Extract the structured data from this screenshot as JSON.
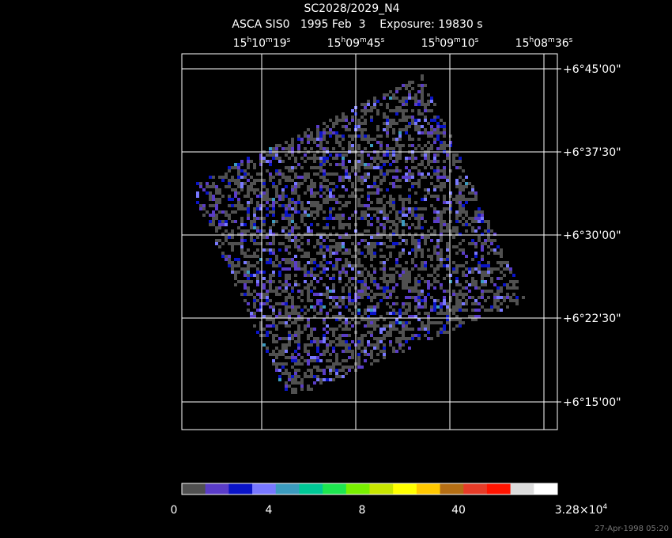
{
  "header": {
    "title": "SC2028/2029_N4",
    "subtitle": "ASCA SIS0   1995 Feb  3    Exposure: 19830 s"
  },
  "ra_labels": [
    [
      "15",
      "h",
      "10",
      "m",
      "19",
      "s"
    ],
    [
      "15",
      "h",
      "09",
      "m",
      "45",
      "s"
    ],
    [
      "15",
      "h",
      "09",
      "m",
      "10",
      "s"
    ],
    [
      "15",
      "h",
      "08",
      "m",
      "36",
      "s"
    ]
  ],
  "dec_labels": [
    "+6°45'00\"",
    "+6°37'30\"",
    "+6°30'00\"",
    "+6°22'30\"",
    "+6°15'00\""
  ],
  "colorbar": {
    "colors": [
      "#505050",
      "#5a3cc8",
      "#0a14c8",
      "#7878ff",
      "#3c9bbe",
      "#00c896",
      "#1ee650",
      "#78f000",
      "#c8e600",
      "#ffff00",
      "#ffc800",
      "#b46e14",
      "#e63c28",
      "#ff1400",
      "#dcdcdc",
      "#ffffff"
    ],
    "labels": [
      [
        "0"
      ],
      [
        "4"
      ],
      [
        "8"
      ],
      [
        "40"
      ],
      [
        "3.28×10",
        "4"
      ]
    ]
  },
  "timestamp": "27-Apr-1998 05:20"
}
